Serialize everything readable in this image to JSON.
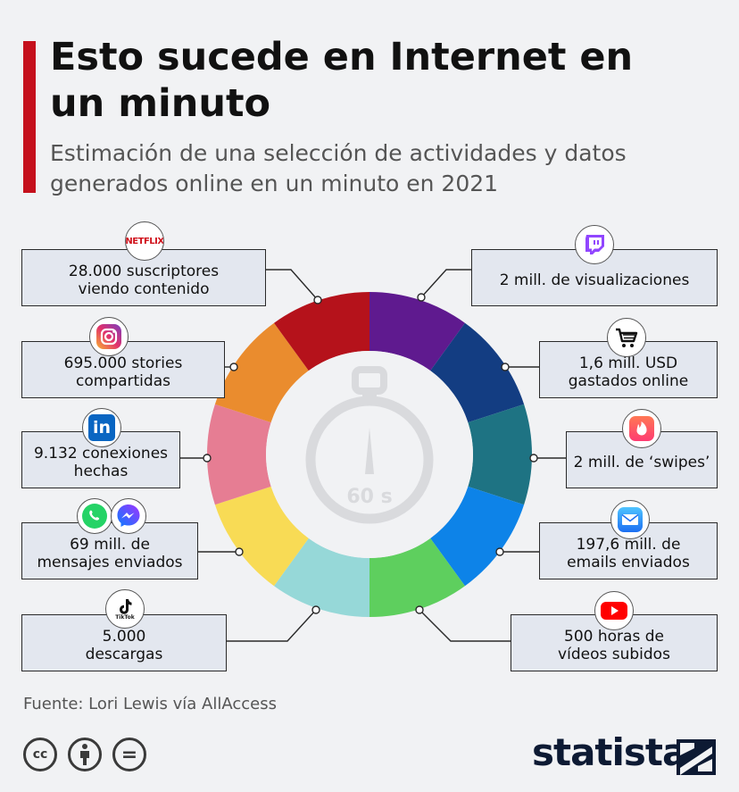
{
  "title": "Esto sucede en Internet en un minuto",
  "subtitle": "Estimación de una selección de actividades y datos generados online en un minuto en 2021",
  "source": "Fuente: Lori Lewis vía AllAccess",
  "logo_text": "statista",
  "center_label": "60 s",
  "chart_data": {
    "type": "pie",
    "title": "Esto sucede en Internet en un minuto",
    "subtitle": "Estimación de una selección de actividades y datos generados online en un minuto en 2021",
    "series": [
      {
        "service": "Twitch",
        "value_text": "2 mill. de visualizaciones",
        "color": "#5f1a8f",
        "icon": "twitch-icon"
      },
      {
        "service": "Online shopping",
        "value_text": "1,6 mill. USD\ngastados online",
        "color": "#133d82",
        "icon": "cart-icon"
      },
      {
        "service": "Tinder",
        "value_text": "2 mill. de ‘swipes’",
        "color": "#1e7383",
        "icon": "tinder-icon"
      },
      {
        "service": "Email",
        "value_text": "197,6 mill. de\nemails enviados",
        "color": "#0d83e8",
        "icon": "mail-icon"
      },
      {
        "service": "YouTube",
        "value_text": "500 horas de\nvídeos subidos",
        "color": "#5ecf5e",
        "icon": "youtube-icon"
      },
      {
        "service": "TikTok",
        "value_text": "5.000\ndescargas",
        "color": "#96d8d8",
        "icon": "tiktok-icon"
      },
      {
        "service": "WhatsApp / Messenger",
        "value_text": "69 mill. de\nmensajes enviados",
        "color": "#f8db55",
        "icon": "whatsapp-messenger-icon"
      },
      {
        "service": "LinkedIn",
        "value_text": "9.132 conexiones\nhechas",
        "color": "#e67d93",
        "icon": "linkedin-icon"
      },
      {
        "service": "Instagram",
        "value_text": "695.000 stories\ncompartidas",
        "color": "#ea8c2e",
        "icon": "instagram-icon"
      },
      {
        "service": "Netflix",
        "value_text": "28.000 suscriptores\nviendo contenido",
        "color": "#b5121b",
        "icon": "netflix-icon"
      }
    ]
  },
  "icons": {
    "netflix_text": "NETFLIX",
    "linkedin_text": "in",
    "tiktok_text": "TikTok"
  },
  "license_icons": [
    "cc-icon",
    "attribution-icon",
    "no-derivatives-icon"
  ],
  "license_text": {
    "cc": "cc",
    "eq": "="
  }
}
